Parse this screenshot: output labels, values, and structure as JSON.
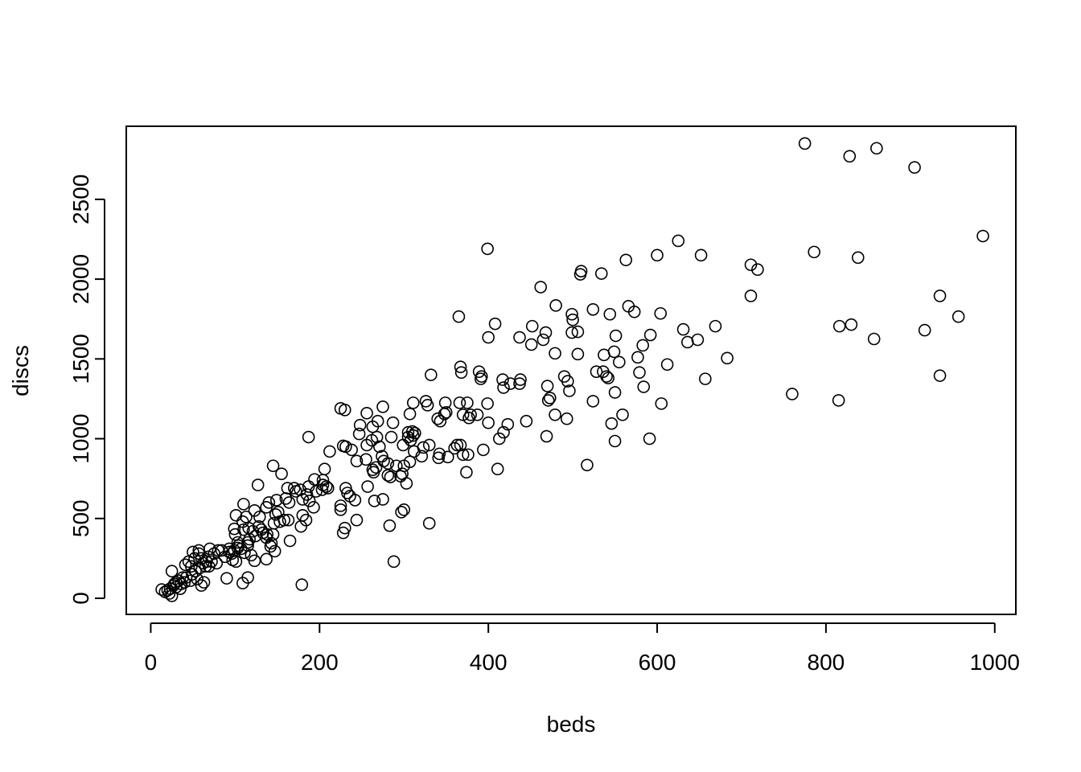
{
  "chart_data": {
    "type": "scatter",
    "xlabel": "beds",
    "ylabel": "discs",
    "color": "#000000",
    "xlim": [
      -29,
      1025
    ],
    "ylim": [
      -101,
      2958
    ],
    "xticks": [
      0,
      200,
      400,
      600,
      800,
      1000
    ],
    "yticks": [
      0,
      500,
      1000,
      1500,
      2000,
      2500
    ],
    "x": [
      775,
      828,
      860,
      905,
      986,
      399,
      625,
      600,
      652,
      563,
      711,
      719,
      786,
      838,
      510,
      509,
      534,
      462,
      711,
      935,
      566,
      480,
      573,
      524,
      604,
      544,
      499,
      408,
      500,
      365,
      816,
      830,
      917,
      957,
      669,
      452,
      468,
      499,
      506,
      551,
      592,
      631,
      400,
      437,
      465,
      648,
      857,
      636,
      451,
      583,
      549,
      537,
      577,
      683,
      479,
      506,
      367,
      555,
      612,
      368,
      389,
      528,
      536,
      579,
      540,
      542,
      392,
      391,
      417,
      438,
      426,
      437,
      490,
      494,
      657,
      935,
      332,
      470,
      418,
      584,
      496,
      760,
      550,
      524,
      473,
      471,
      605,
      815,
      399,
      366,
      375,
      349,
      326,
      311,
      275,
      328,
      225,
      230,
      256,
      307,
      350,
      348,
      387,
      379,
      370,
      377,
      479,
      559,
      340,
      343,
      445,
      493,
      546,
      400,
      423,
      269,
      248,
      263,
      287,
      418,
      413,
      469,
      550,
      591,
      187,
      247,
      268,
      305,
      310,
      313,
      311,
      305,
      308,
      285,
      256,
      262,
      228,
      231,
      238,
      299,
      330,
      363,
      367,
      360,
      323,
      312,
      321,
      341,
      352,
      370,
      394,
      342,
      376,
      271,
      274,
      255,
      276,
      281,
      291,
      300,
      307,
      244,
      212,
      411,
      374,
      517,
      145,
      298,
      264,
      281,
      284,
      263,
      267,
      303,
      296,
      204,
      204,
      208,
      210,
      203,
      196,
      187,
      194,
      206,
      231,
      257,
      233,
      236,
      242,
      265,
      275,
      170,
      177,
      162,
      155,
      127,
      149,
      160,
      164,
      180,
      185,
      188,
      172,
      140,
      110,
      123,
      137,
      129,
      148,
      151,
      163,
      146,
      153,
      158,
      180,
      184,
      178,
      193,
      225,
      225,
      230,
      228,
      244,
      283,
      297,
      300,
      330,
      288,
      179,
      109,
      115,
      90,
      165,
      137,
      131,
      138,
      142,
      147,
      143,
      137,
      123,
      119,
      111,
      115,
      115,
      103,
      103,
      99,
      96,
      104,
      100,
      99,
      110,
      116,
      121,
      101,
      109,
      113,
      93,
      97,
      101,
      84,
      75,
      80,
      70,
      68,
      66,
      69,
      62,
      60,
      57,
      57,
      50,
      52,
      48,
      45,
      41,
      49,
      55,
      60,
      63,
      47,
      40,
      38,
      36,
      33,
      30,
      28,
      25,
      23,
      20,
      17,
      13,
      22,
      25,
      27,
      35,
      30,
      42,
      53,
      58,
      65,
      72,
      78,
      88,
      93,
      107,
      117,
      124,
      128,
      133,
      145
    ],
    "y": [
      2850,
      2770,
      2820,
      2700,
      2270,
      2190,
      2240,
      2150,
      2150,
      2120,
      2090,
      2060,
      2170,
      2135,
      2050,
      2030,
      2035,
      1950,
      1895,
      1895,
      1830,
      1835,
      1795,
      1810,
      1785,
      1780,
      1780,
      1720,
      1745,
      1765,
      1705,
      1715,
      1680,
      1765,
      1705,
      1705,
      1665,
      1665,
      1670,
      1645,
      1650,
      1685,
      1635,
      1635,
      1620,
      1620,
      1625,
      1605,
      1590,
      1585,
      1545,
      1525,
      1510,
      1505,
      1535,
      1530,
      1450,
      1480,
      1465,
      1415,
      1420,
      1420,
      1420,
      1415,
      1390,
      1380,
      1390,
      1375,
      1370,
      1370,
      1345,
      1345,
      1390,
      1360,
      1375,
      1395,
      1400,
      1330,
      1320,
      1325,
      1300,
      1280,
      1290,
      1235,
      1255,
      1240,
      1220,
      1240,
      1220,
      1225,
      1225,
      1225,
      1235,
      1225,
      1200,
      1210,
      1190,
      1180,
      1160,
      1155,
      1165,
      1155,
      1150,
      1150,
      1150,
      1130,
      1150,
      1150,
      1125,
      1110,
      1110,
      1125,
      1095,
      1100,
      1090,
      1110,
      1085,
      1075,
      1100,
      1040,
      1000,
      1015,
      985,
      1000,
      1010,
      1030,
      1010,
      1040,
      1045,
      1035,
      1020,
      1010,
      990,
      1010,
      960,
      990,
      955,
      950,
      930,
      960,
      960,
      960,
      960,
      940,
      945,
      920,
      890,
      880,
      885,
      900,
      930,
      905,
      900,
      950,
      890,
      870,
      860,
      845,
      830,
      830,
      855,
      860,
      920,
      810,
      790,
      835,
      830,
      780,
      790,
      770,
      760,
      805,
      820,
      720,
      765,
      740,
      710,
      700,
      690,
      680,
      670,
      700,
      745,
      810,
      690,
      700,
      660,
      640,
      615,
      610,
      620,
      690,
      680,
      690,
      780,
      710,
      615,
      625,
      600,
      620,
      650,
      610,
      670,
      600,
      590,
      550,
      570,
      510,
      525,
      540,
      490,
      470,
      480,
      490,
      520,
      490,
      450,
      570,
      580,
      555,
      440,
      410,
      490,
      455,
      540,
      555,
      470,
      230,
      85,
      95,
      130,
      125,
      360,
      380,
      430,
      400,
      325,
      295,
      345,
      245,
      235,
      270,
      285,
      330,
      350,
      350,
      315,
      300,
      280,
      330,
      400,
      435,
      430,
      440,
      420,
      520,
      480,
      510,
      310,
      240,
      230,
      300,
      280,
      300,
      310,
      260,
      230,
      200,
      220,
      250,
      280,
      300,
      290,
      250,
      200,
      230,
      210,
      150,
      120,
      80,
      100,
      110,
      100,
      130,
      90,
      110,
      70,
      90,
      170,
      60,
      50,
      40,
      55,
      30,
      15,
      80,
      60,
      100,
      130,
      170,
      190,
      200,
      230,
      220,
      260,
      290,
      310,
      370,
      390,
      450,
      410,
      400
    ]
  }
}
